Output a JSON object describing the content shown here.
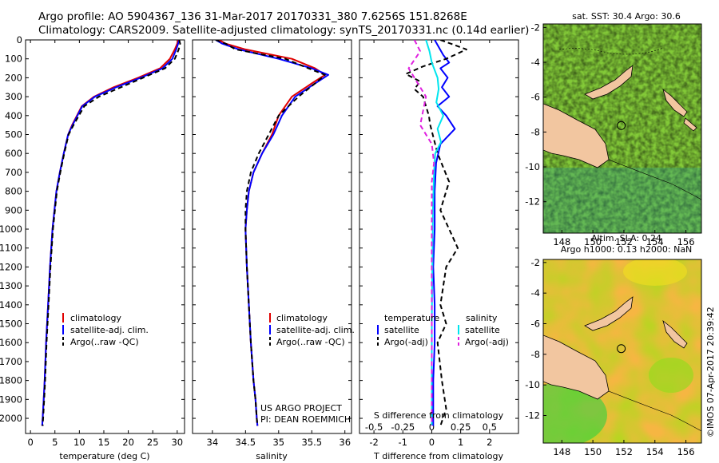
{
  "header": {
    "line1": "Argo profile: AO 5904367_136 31-Mar-2017 20170331_380 7.6256S 151.8268E",
    "line2": "Climatology: CARS2009. Satellite-adjusted climatology: synTS_20170331.nc (0.14d earlier)"
  },
  "colors": {
    "climatology": "#e00000",
    "satellite": "#0000ff",
    "argo": "#000000",
    "satellite_s": "#00e5ee",
    "argo_s": "#e020e0",
    "land": "#f2c6a0"
  },
  "chart_data": [
    {
      "type": "line",
      "name": "temperature-profile",
      "xlabel": "temperature (deg C)",
      "ylabel": "",
      "xlim": [
        -1,
        31.5
      ],
      "ylim": [
        2080,
        0
      ],
      "xticks": [
        0,
        5,
        10,
        15,
        20,
        25,
        30
      ],
      "yticks": [
        0,
        100,
        200,
        300,
        400,
        500,
        600,
        700,
        800,
        900,
        1000,
        1100,
        1200,
        1300,
        1400,
        1500,
        1600,
        1700,
        1800,
        1900,
        2000
      ],
      "legend": [
        "climatology",
        "satellite-adj. clim.",
        "Argo(..raw -QC)"
      ],
      "series": [
        {
          "name": "climatology",
          "style": "solid",
          "color": "#e00000",
          "x": [
            30.2,
            30.0,
            29.5,
            28.5,
            26.5,
            22.0,
            17.0,
            13.0,
            10.5,
            8.5,
            7.7,
            6.8,
            6.0,
            5.3,
            4.5,
            4.0,
            3.6,
            3.2,
            2.9,
            2.7,
            2.5,
            2.4
          ],
          "y": [
            0,
            20,
            50,
            100,
            150,
            200,
            250,
            300,
            350,
            450,
            500,
            600,
            700,
            800,
            1000,
            1200,
            1400,
            1600,
            1800,
            1900,
            2000,
            2040
          ]
        },
        {
          "name": "satellite-adj. clim.",
          "style": "solid",
          "color": "#0000ff",
          "x": [
            30.4,
            30.2,
            29.8,
            29.0,
            27.0,
            22.5,
            17.5,
            13.2,
            10.6,
            8.6,
            7.7,
            6.8,
            6.0,
            5.3,
            4.5,
            4.0,
            3.6,
            3.2,
            2.9,
            2.7,
            2.5,
            2.4
          ],
          "y": [
            0,
            20,
            50,
            100,
            150,
            200,
            250,
            300,
            350,
            450,
            500,
            600,
            700,
            800,
            1000,
            1200,
            1400,
            1600,
            1800,
            1900,
            2000,
            2040
          ]
        },
        {
          "name": "Argo(..raw -QC)",
          "style": "dashed",
          "color": "#000000",
          "x": [
            30.4,
            30.6,
            30.3,
            29.5,
            27.5,
            23.0,
            18.5,
            14.0,
            11.0,
            8.8,
            7.8,
            6.9,
            6.1,
            5.4,
            4.6,
            4.1,
            3.7,
            3.3,
            3.0,
            2.8,
            2.6,
            2.5
          ],
          "y": [
            0,
            20,
            50,
            100,
            150,
            200,
            250,
            300,
            350,
            450,
            500,
            600,
            700,
            800,
            1000,
            1200,
            1400,
            1600,
            1800,
            1900,
            2000,
            2040
          ]
        }
      ]
    },
    {
      "type": "line",
      "name": "salinity-profile",
      "xlabel": "salinity",
      "ylabel": "",
      "xlim": [
        33.7,
        36.1
      ],
      "ylim": [
        2080,
        0
      ],
      "xticks": [
        34,
        34.5,
        35,
        35.5,
        36
      ],
      "annotation": [
        "US ARGO PROJECT",
        "PI: DEAN ROEMMICH"
      ],
      "legend": [
        "climatology",
        "satellite-adj. clim.",
        "Argo(..raw -QC)"
      ],
      "series": [
        {
          "name": "climatology",
          "style": "solid",
          "color": "#e00000",
          "x": [
            34.1,
            34.2,
            34.5,
            35.2,
            35.55,
            35.7,
            35.5,
            35.2,
            35.0,
            34.9,
            34.75,
            34.62,
            34.55,
            34.52,
            34.5,
            34.52,
            34.55,
            34.58,
            34.62,
            34.65,
            34.67,
            34.68
          ],
          "y": [
            0,
            20,
            50,
            100,
            150,
            185,
            230,
            300,
            400,
            500,
            600,
            700,
            800,
            900,
            1000,
            1200,
            1400,
            1600,
            1800,
            1900,
            2000,
            2040
          ]
        },
        {
          "name": "satellite-adj. clim.",
          "style": "solid",
          "color": "#0000ff",
          "x": [
            34.05,
            34.15,
            34.4,
            35.0,
            35.5,
            35.75,
            35.55,
            35.25,
            35.05,
            34.92,
            34.75,
            34.62,
            34.55,
            34.52,
            34.5,
            34.52,
            34.55,
            34.58,
            34.62,
            34.65,
            34.67,
            34.68
          ],
          "y": [
            0,
            20,
            50,
            100,
            150,
            185,
            230,
            300,
            400,
            500,
            600,
            700,
            800,
            900,
            1000,
            1200,
            1400,
            1600,
            1800,
            1900,
            2000,
            2040
          ]
        },
        {
          "name": "Argo(..raw -QC)",
          "style": "dashed",
          "color": "#000000",
          "x": [
            34.05,
            34.2,
            34.35,
            35.1,
            35.45,
            35.7,
            35.55,
            35.3,
            35.0,
            34.85,
            34.7,
            34.58,
            34.52,
            34.5,
            34.5,
            34.52,
            34.55,
            34.58,
            34.62,
            34.65,
            34.67,
            34.68
          ],
          "y": [
            0,
            20,
            50,
            100,
            150,
            185,
            230,
            300,
            400,
            500,
            600,
            700,
            800,
            900,
            1000,
            1200,
            1400,
            1600,
            1800,
            1900,
            2000,
            2040
          ]
        }
      ]
    },
    {
      "type": "line",
      "name": "difference-profile",
      "xlabel": "T difference from climatology",
      "x2label": "S difference from climatology",
      "xlim": [
        -2.5,
        3.0
      ],
      "x2lim": [
        -0.625,
        0.75
      ],
      "ylim": [
        2080,
        0
      ],
      "xticks": [
        -2,
        -1,
        0,
        1,
        2
      ],
      "x2ticks": [
        -0.5,
        -0.25,
        0,
        0.25,
        0.5
      ],
      "legend_titles": [
        "temperature",
        "salinity"
      ],
      "legend_left": [
        "satellite",
        "Argo(-adj)"
      ],
      "legend_right": [
        "satellite",
        "Argo(-adj)"
      ],
      "series": [
        {
          "name": "T satellite",
          "style": "solid",
          "color": "#0000ff",
          "x": [
            0.1,
            0.25,
            0.4,
            0.6,
            0.3,
            0.55,
            0.35,
            0.6,
            0.2,
            0.5,
            0.8,
            0.3,
            0.15,
            0.1,
            0.1,
            0.05,
            0.1,
            0.1,
            0.05,
            0.05,
            0.05
          ],
          "y": [
            0,
            40,
            80,
            120,
            150,
            200,
            250,
            300,
            350,
            400,
            470,
            550,
            650,
            800,
            1000,
            1200,
            1400,
            1600,
            1800,
            1950,
            2040
          ]
        },
        {
          "name": "T Argo",
          "style": "dashed",
          "color": "#000000",
          "x": [
            0.3,
            1.2,
            0.5,
            -0.3,
            -0.9,
            -0.4,
            -0.6,
            -0.3,
            -0.2,
            -0.1,
            -0.05,
            0.2,
            0.6,
            0.5,
            0.3,
            0.6,
            0.9,
            0.5,
            0.3,
            0.5,
            0.2,
            0.35,
            0.5,
            0.3
          ],
          "y": [
            0,
            50,
            100,
            140,
            180,
            220,
            260,
            300,
            350,
            400,
            450,
            600,
            750,
            800,
            900,
            1000,
            1100,
            1200,
            1400,
            1500,
            1600,
            1800,
            1950,
            2040
          ]
        },
        {
          "name": "S satellite",
          "style": "solid",
          "color": "#00e5ee",
          "x": [
            -0.05,
            -0.02,
            0.0,
            0.05,
            0.06,
            0.04,
            0.1,
            0.05,
            0.08,
            0.03,
            0.02,
            0.01,
            0.0,
            0.0
          ],
          "y": [
            0,
            60,
            120,
            200,
            260,
            330,
            400,
            470,
            540,
            600,
            700,
            900,
            1500,
            2040
          ]
        },
        {
          "name": "S Argo",
          "style": "dashed",
          "color": "#e020e0",
          "x": [
            -0.15,
            -0.1,
            -0.2,
            -0.05,
            -0.1,
            0.0,
            0.02,
            0.0,
            0.0,
            0.0,
            0.0
          ],
          "y": [
            0,
            60,
            150,
            300,
            450,
            550,
            650,
            750,
            900,
            1400,
            2040
          ]
        }
      ]
    },
    {
      "type": "heatmap",
      "name": "sst-map",
      "title": "sat. SST: 30.4  Argo: 30.6",
      "xlim": [
        146.8,
        157.0
      ],
      "ylim": [
        -13.8,
        -1.8
      ],
      "xticks": [
        148,
        150,
        152,
        154,
        156
      ],
      "yticks": [
        -2,
        -4,
        -6,
        -8,
        -10,
        -12
      ],
      "float_position": [
        151.83,
        -7.63
      ]
    },
    {
      "type": "heatmap",
      "name": "sla-map",
      "title": "Altim. SLA: 0.24",
      "subtitle": "Argo h1000: 0.13  h2000: NaN",
      "xlim": [
        146.8,
        157.0
      ],
      "ylim": [
        -13.8,
        -1.8
      ],
      "xticks": [
        148,
        150,
        152,
        154,
        156
      ],
      "yticks": [
        -2,
        -4,
        -6,
        -8,
        -10,
        -12
      ],
      "float_position": [
        151.83,
        -7.63
      ]
    }
  ],
  "watermark": "©IMOS 07-Apr-2017 20:39:42"
}
